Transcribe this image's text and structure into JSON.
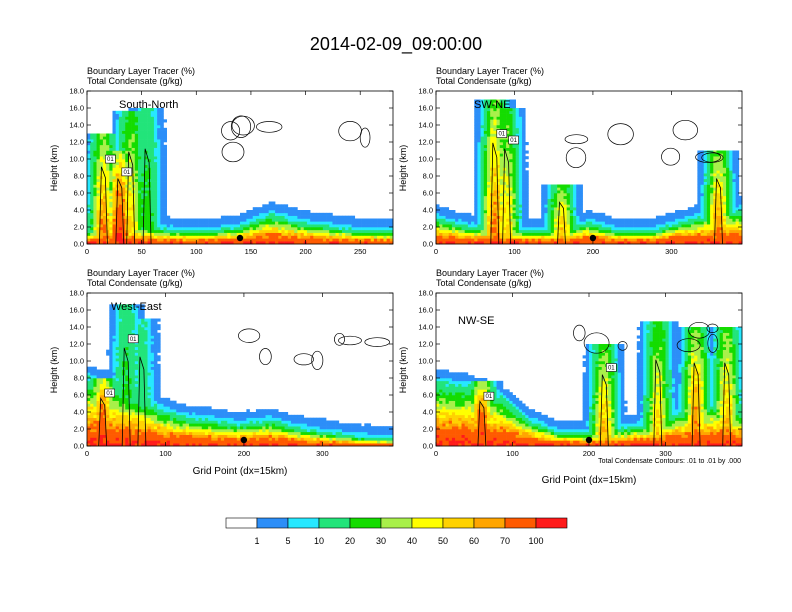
{
  "title": "2014-02-09_09:00:00",
  "colors": {
    "background": "#ffffff",
    "scale": [
      "#ffffff",
      "#2c8ef8",
      "#26e8ff",
      "#22e47a",
      "#14dc00",
      "#a8f04a",
      "#ffff00",
      "#ffd200",
      "#ffa500",
      "#ff5a00",
      "#ff1a1a"
    ],
    "contour": "#000000"
  },
  "chart_data": [
    {
      "type": "heatmap",
      "panel_label": "South-North",
      "header_line1": "Boundary Layer Tracer   (%)",
      "header_line2": "Total Condensate   (g/kg)",
      "ylabel": "Height (km)",
      "xlabel": "",
      "xlim": [
        0,
        280
      ],
      "ylim": [
        0,
        18
      ],
      "xticks": [
        "0",
        "50",
        "100",
        "150",
        "200",
        "250"
      ],
      "yticks": [
        "0.0",
        "2.0",
        "4.0",
        "6.0",
        "8.0",
        "10.0",
        "12.0",
        "14.0",
        "16.0",
        "18.0"
      ],
      "contour_labels": [
        "01",
        "01"
      ],
      "marker_x": 140,
      "tracer_field": {
        "surface_layer_top_km": [
          1.5,
          2.5,
          2.0,
          1.5,
          1.5,
          2.0,
          3.5,
          2.5,
          2.0,
          1.5,
          1.5
        ],
        "convective_columns": [
          {
            "x": 15,
            "top_km": 13.0,
            "max_pct": 70
          },
          {
            "x": 30,
            "top_km": 11.0,
            "max_pct": 100
          },
          {
            "x": 40,
            "top_km": 15.5,
            "max_pct": 50
          },
          {
            "x": 55,
            "top_km": 16.0,
            "max_pct": 20
          }
        ]
      }
    },
    {
      "type": "heatmap",
      "panel_label": "SW-NE",
      "header_line1": "Boundary Layer Tracer   (%)",
      "header_line2": "Total Condensate   (g/kg)",
      "ylabel": "Height (km)",
      "xlabel": "",
      "xlim": [
        0,
        390
      ],
      "ylim": [
        0,
        18
      ],
      "xticks": [
        "0",
        "100",
        "200",
        "300"
      ],
      "yticks": [
        "0.0",
        "2.0",
        "4.0",
        "6.0",
        "8.0",
        "10.0",
        "12.0",
        "14.0",
        "16.0",
        "18.0"
      ],
      "contour_labels": [
        "01",
        "01"
      ],
      "marker_x": 200,
      "tracer_field": {
        "surface_layer_top_km": [
          3.0,
          2.0,
          2.0,
          1.5,
          1.5,
          2.5,
          1.5,
          1.5,
          2.5,
          3.5,
          4.0
        ],
        "convective_columns": [
          {
            "x": 75,
            "top_km": 17.0,
            "max_pct": 70
          },
          {
            "x": 90,
            "top_km": 16.0,
            "max_pct": 50
          },
          {
            "x": 160,
            "top_km": 7.0,
            "max_pct": 60
          },
          {
            "x": 360,
            "top_km": 11.0,
            "max_pct": 70
          }
        ]
      }
    },
    {
      "type": "heatmap",
      "panel_label": "West-East",
      "header_line1": "Boundary Layer Tracer   (%)",
      "header_line2": "Total Condensate   (g/kg)",
      "ylabel": "Height (km)",
      "xlabel": "Grid Point (dx=15km)",
      "xlim": [
        0,
        390
      ],
      "ylim": [
        0,
        18
      ],
      "xticks": [
        "0",
        "100",
        "200",
        "300"
      ],
      "yticks": [
        "0.0",
        "2.0",
        "4.0",
        "6.0",
        "8.0",
        "10.0",
        "12.0",
        "14.0",
        "16.0",
        "18.0"
      ],
      "contour_labels": [
        "01",
        "01"
      ],
      "marker_x": 200,
      "tracer_field": {
        "surface_layer_top_km": [
          8.0,
          7.0,
          5.0,
          3.5,
          3.0,
          2.5,
          3.0,
          2.0,
          1.5,
          1.0,
          0.8
        ],
        "convective_columns": [
          {
            "x": 20,
            "top_km": 8.0,
            "max_pct": 100
          },
          {
            "x": 50,
            "top_km": 16.5,
            "max_pct": 20
          },
          {
            "x": 70,
            "top_km": 15.0,
            "max_pct": 10
          }
        ]
      }
    },
    {
      "type": "heatmap",
      "panel_label": "NW-SE",
      "header_line1": "Boundary Layer Tracer   (%)",
      "header_line2": "Total Condensate   (g/kg)",
      "ylabel": "Height (km)",
      "xlabel": "Grid Point (dx=15km)",
      "xlim": [
        0,
        400
      ],
      "ylim": [
        0,
        18
      ],
      "xticks": [
        "0",
        "100",
        "200",
        "300"
      ],
      "yticks": [
        "0.0",
        "2.0",
        "4.0",
        "6.0",
        "8.0",
        "10.0",
        "12.0",
        "14.0",
        "16.0",
        "18.0"
      ],
      "contour_labels": [
        "01",
        "01"
      ],
      "marker_x": 200,
      "annotation": "Total Condensate Contours: .01 to .01 by .000",
      "tracer_field": {
        "surface_layer_top_km": [
          7.5,
          7.0,
          6.0,
          3.0,
          1.5,
          1.5,
          2.0,
          2.5,
          4.0,
          5.0,
          4.0
        ],
        "convective_columns": [
          {
            "x": 60,
            "top_km": 7.5,
            "max_pct": 100
          },
          {
            "x": 220,
            "top_km": 12.0,
            "max_pct": 60
          },
          {
            "x": 290,
            "top_km": 14.5,
            "max_pct": 50
          },
          {
            "x": 340,
            "top_km": 14.0,
            "max_pct": 70
          },
          {
            "x": 380,
            "top_km": 14.0,
            "max_pct": 60
          }
        ]
      }
    }
  ],
  "colorbar": {
    "levels": [
      "1",
      "5",
      "10",
      "20",
      "30",
      "40",
      "50",
      "60",
      "70",
      "100"
    ]
  }
}
